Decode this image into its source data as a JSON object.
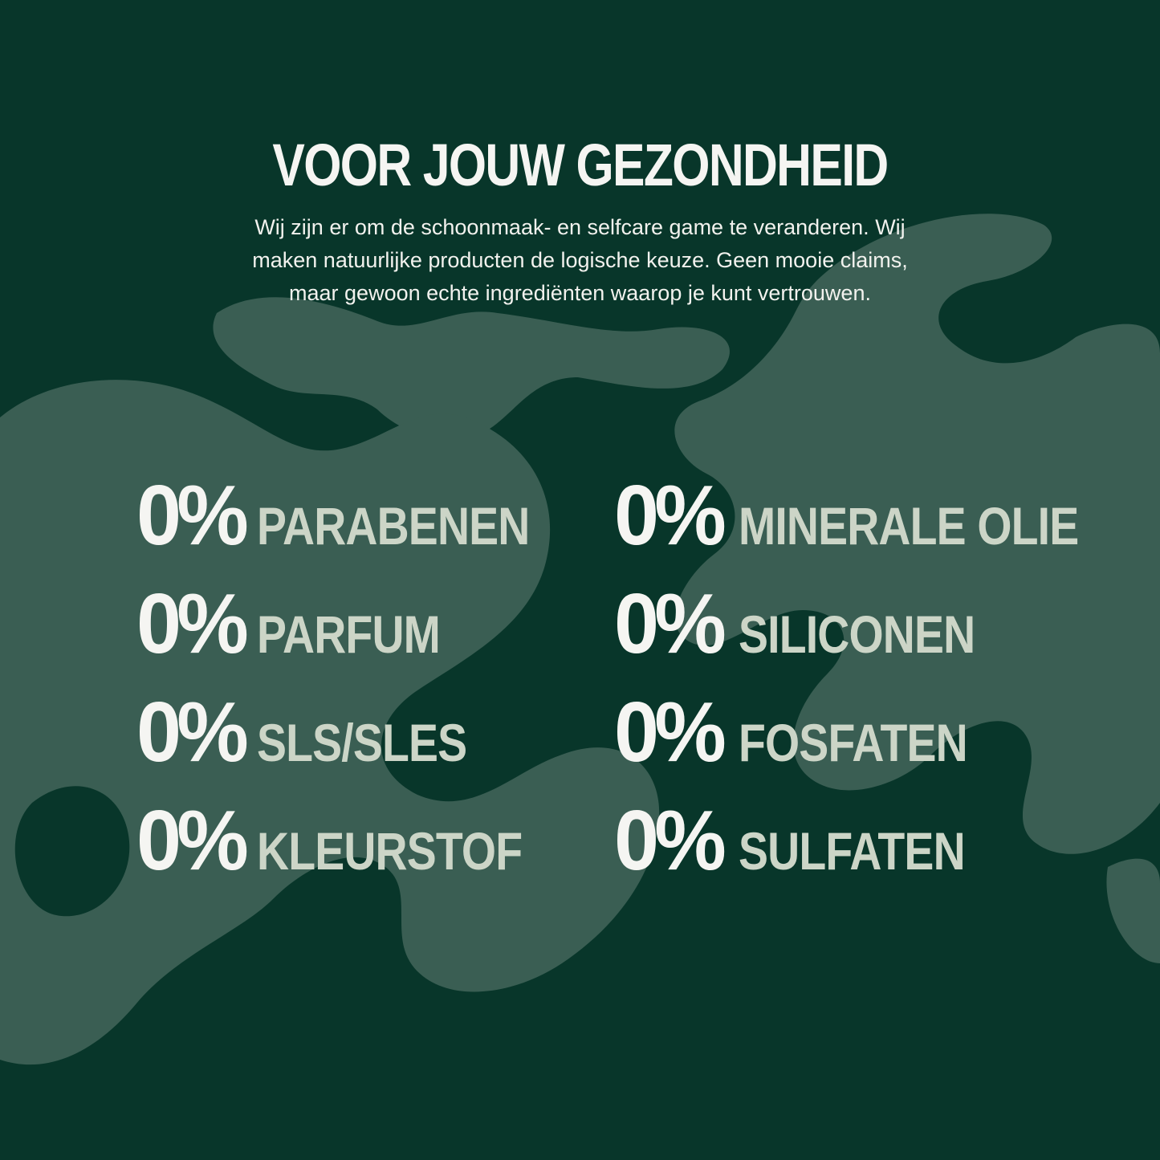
{
  "colors": {
    "background": "#08362a",
    "pattern": "#3a5e53",
    "percent": "#f5f5f2",
    "label": "#ccd5c7"
  },
  "heading": "VOOR JOUW GEZONDHEID",
  "intro": [
    "Wij zijn er om de schoonmaak- en selfcare game te veranderen. Wij",
    "maken natuurlijke producten de logische keuze. Geen mooie claims,",
    "maar gewoon echte ingrediënten waarop je kunt vertrouwen."
  ],
  "stats": [
    {
      "value": "0%",
      "label": "PARABENEN"
    },
    {
      "value": "0%",
      "label": "MINERALE OLIE"
    },
    {
      "value": "0%",
      "label": "PARFUM"
    },
    {
      "value": "0%",
      "label": "SILICONEN"
    },
    {
      "value": "0%",
      "label": "SLS/SLES"
    },
    {
      "value": "0%",
      "label": "FOSFATEN"
    },
    {
      "value": "0%",
      "label": "KLEURSTOF"
    },
    {
      "value": "0%",
      "label": "SULFATEN"
    }
  ]
}
